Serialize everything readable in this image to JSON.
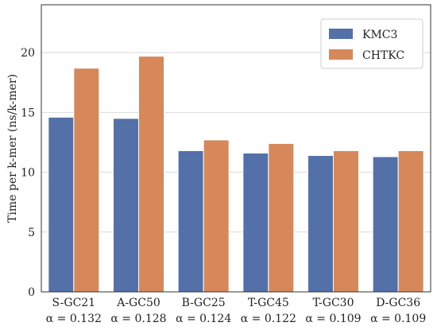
{
  "chart_data": {
    "type": "bar",
    "title": "",
    "xlabel": "",
    "ylabel": "Time per k-mer (ns/k-mer)",
    "ylim": [
      0,
      24
    ],
    "yticks": [
      0,
      5,
      10,
      15,
      20
    ],
    "grid": true,
    "legend_position": "top-right",
    "categories": [
      "S-GC21",
      "A-GC50",
      "B-GC25",
      "T-GC45",
      "T-GC30",
      "D-GC36"
    ],
    "category_sublabels": [
      "α = 0.132",
      "α = 0.128",
      "α = 0.124",
      "α = 0.122",
      "α = 0.109",
      "α = 0.109"
    ],
    "series": [
      {
        "name": "KMC3",
        "color": "#5470a8",
        "values": [
          14.6,
          14.5,
          11.8,
          11.6,
          11.4,
          11.3
        ]
      },
      {
        "name": "CHTKC",
        "color": "#d6885a",
        "values": [
          18.7,
          19.7,
          12.7,
          12.4,
          11.8,
          11.8
        ]
      }
    ]
  }
}
